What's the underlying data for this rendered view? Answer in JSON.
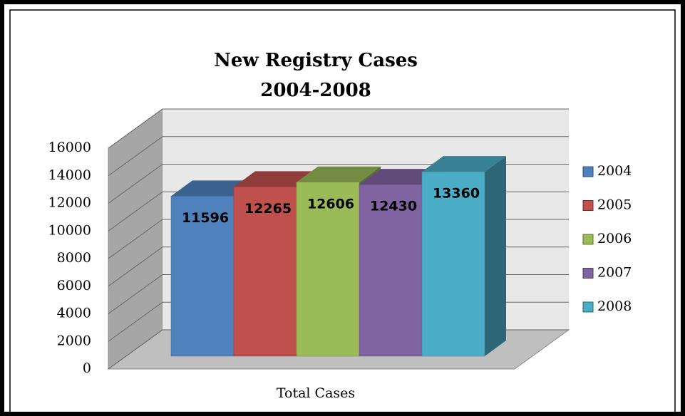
{
  "chart_data": {
    "type": "bar",
    "title": "New Registry Cases",
    "subtitle": "2004-2008",
    "categories": [
      "Total Cases"
    ],
    "series": [
      {
        "name": "2004",
        "color": "#4f81bd",
        "values": [
          11596
        ]
      },
      {
        "name": "2005",
        "color": "#c0504d",
        "values": [
          12265
        ]
      },
      {
        "name": "2006",
        "color": "#9bbb59",
        "values": [
          12606
        ]
      },
      {
        "name": "2007",
        "color": "#8064a2",
        "values": [
          12430
        ]
      },
      {
        "name": "2008",
        "color": "#4bacc6",
        "values": [
          13360
        ]
      }
    ],
    "ylim": [
      0,
      16000
    ],
    "yticks": [
      0,
      2000,
      4000,
      6000,
      8000,
      10000,
      12000,
      14000,
      16000
    ],
    "grid": true,
    "legend": "right"
  }
}
